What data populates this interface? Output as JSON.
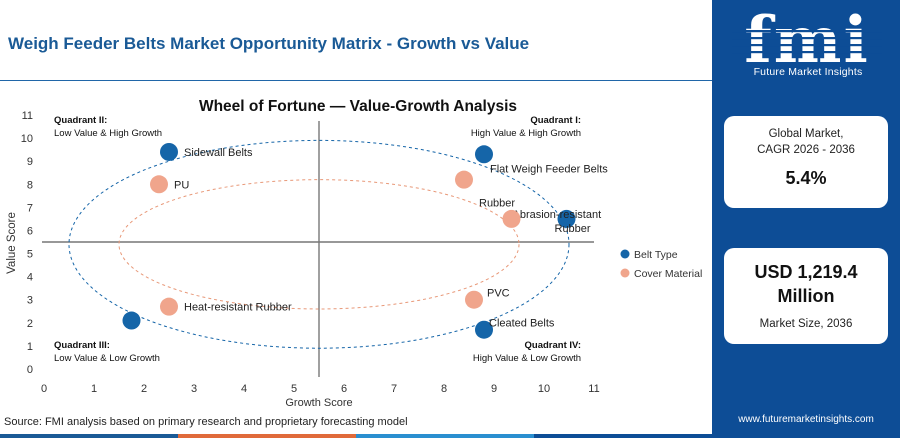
{
  "header": {
    "title": "Weigh Feeder Belts Market Opportunity Matrix - Growth vs Value"
  },
  "logo": {
    "wordmark": "fmi",
    "subtitle": "Future Market Insights"
  },
  "stats": {
    "cagr_label_1": "Global Market,",
    "cagr_label_2": "CAGR 2026 - 2036",
    "cagr_value": "5.4%",
    "size_value_1": "USD 1,219.4",
    "size_value_2": "Million",
    "size_label": "Market Size, 2036"
  },
  "footer": {
    "source": "Source: FMI analysis based on primary research and proprietary forecasting model",
    "url": "www.futuremarketinsights.com"
  },
  "colors": {
    "brand_blue": "#0d4d96",
    "belt_type": "#1565a8",
    "cover_material": "#f0a58c",
    "footer_bar": [
      "#1a5a96",
      "#e06a3a",
      "#2a8fd0",
      "#0d4d96"
    ]
  },
  "chart_data": {
    "type": "scatter",
    "title": "Wheel of Fortune — Value-Growth Analysis",
    "xlabel": "Growth Score",
    "ylabel": "Value Score",
    "xlim": [
      0,
      11
    ],
    "ylim": [
      0,
      11
    ],
    "xticks": [
      0,
      1,
      2,
      3,
      4,
      5,
      6,
      7,
      8,
      9,
      10,
      11
    ],
    "yticks": [
      0,
      1,
      2,
      3,
      4,
      5,
      6,
      7,
      8,
      9,
      10,
      11
    ],
    "divider": {
      "x": 5.5,
      "y": 5.5
    },
    "quadrants": [
      {
        "id": "I",
        "title": "Quadrant I:",
        "subtitle": "High Value & High Growth",
        "position": "top-right"
      },
      {
        "id": "II",
        "title": "Quadrant II:",
        "subtitle": "Low Value & High Growth",
        "position": "top-left"
      },
      {
        "id": "III",
        "title": "Quadrant III:",
        "subtitle": "Low Value & Low Growth",
        "position": "bottom-left"
      },
      {
        "id": "IV",
        "title": "Quadrant IV:",
        "subtitle": "High Value & Low Growth",
        "position": "bottom-right"
      }
    ],
    "legend": {
      "position": "right",
      "entries": [
        "Belt Type",
        "Cover Material"
      ]
    },
    "series": [
      {
        "name": "Belt Type",
        "color": "#1565a8",
        "points": [
          {
            "label": "Sidewall Belts",
            "x": 2.5,
            "y": 9.4
          },
          {
            "label": "Flat Weigh Feeder Belts",
            "x": 8.8,
            "y": 9.3
          },
          {
            "label": "Abrasion-resistant Rubber",
            "x": 10.45,
            "y": 6.5
          },
          {
            "label": "",
            "x": 1.75,
            "y": 2.1
          },
          {
            "label": "Cleated Belts",
            "x": 8.8,
            "y": 1.7
          }
        ]
      },
      {
        "name": "Cover Material",
        "color": "#f0a58c",
        "points": [
          {
            "label": "PU",
            "x": 2.3,
            "y": 8.0
          },
          {
            "label": "Rubber",
            "x": 8.4,
            "y": 8.2
          },
          {
            "label": "",
            "x": 9.35,
            "y": 6.5
          },
          {
            "label": "Heat-resistant Rubber",
            "x": 2.5,
            "y": 2.7
          },
          {
            "label": "PVC",
            "x": 8.6,
            "y": 3.0
          }
        ]
      }
    ]
  }
}
